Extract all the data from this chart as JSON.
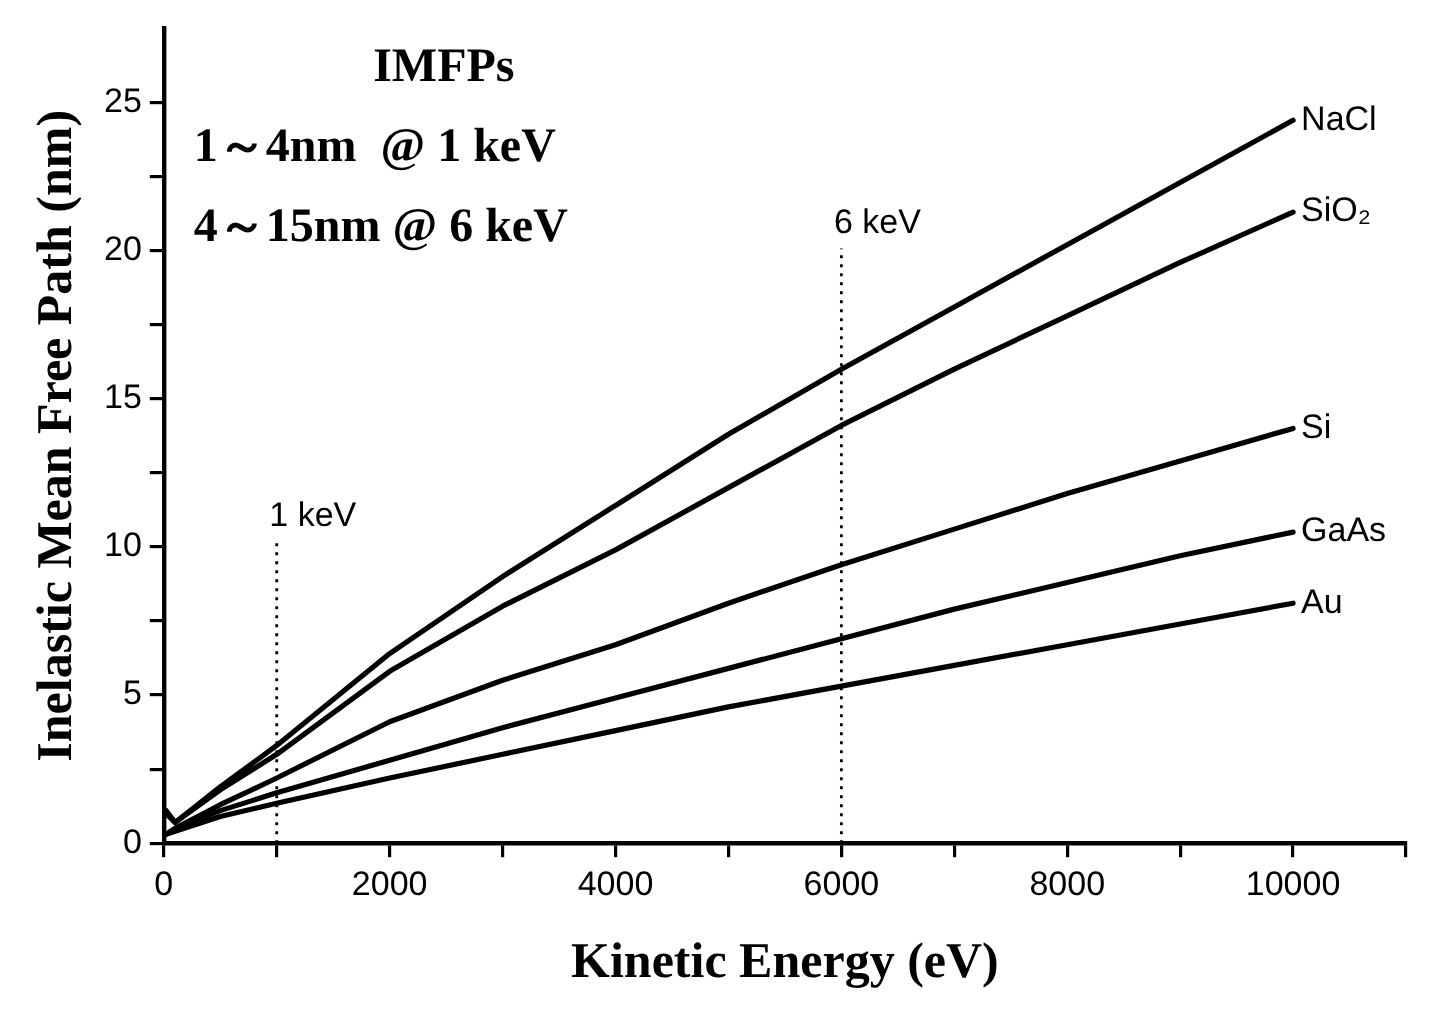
{
  "chart_data": {
    "type": "line",
    "xlabel": "Kinetic Energy (eV)",
    "ylabel": "Inelastic Mean Free Path (nm)",
    "annotations": [
      "IMFPs",
      "1～4nm  @ 1 keV",
      "4～15nm @ 6 keV"
    ],
    "x": [
      20,
      100,
      500,
      1000,
      2000,
      3000,
      4000,
      5000,
      6000,
      7000,
      8000,
      9000,
      10000
    ],
    "series": [
      {
        "name": "NaCl",
        "color": "#000000",
        "values": [
          1.1,
          0.7,
          1.9,
          3.3,
          6.4,
          9.0,
          11.4,
          13.8,
          16.0,
          18.1,
          20.2,
          22.3,
          24.4
        ]
      },
      {
        "name": "SiO₂",
        "color": "#000000",
        "values": [
          1.0,
          0.7,
          1.8,
          3.0,
          5.8,
          8.0,
          9.9,
          12.0,
          14.1,
          16.0,
          17.8,
          19.6,
          21.3
        ]
      },
      {
        "name": "Si",
        "color": "#000000",
        "values": [
          0.3,
          0.5,
          1.3,
          2.2,
          4.1,
          5.5,
          6.7,
          8.1,
          9.4,
          10.6,
          11.8,
          12.9,
          14.0
        ]
      },
      {
        "name": "GaAs",
        "color": "#000000",
        "values": [
          0.3,
          0.5,
          1.1,
          1.7,
          2.8,
          3.9,
          4.9,
          5.9,
          6.9,
          7.9,
          8.8,
          9.7,
          10.5
        ]
      },
      {
        "name": "Au",
        "color": "#000000",
        "values": [
          0.3,
          0.4,
          0.9,
          1.35,
          2.2,
          3.0,
          3.8,
          4.6,
          5.3,
          6.0,
          6.7,
          7.4,
          8.1
        ]
      }
    ],
    "xlim": [
      0,
      11000
    ],
    "xticks": [
      0,
      {
        "value": 1000,
        "label": null
      },
      2000,
      {
        "value": 3000,
        "label": null
      },
      4000,
      {
        "value": 5000,
        "label": null
      },
      6000,
      {
        "value": 7000,
        "label": null
      },
      8000,
      {
        "value": 9000,
        "label": null
      },
      10000,
      {
        "value": 11000,
        "label": null
      }
    ],
    "ylim": [
      0,
      27.5
    ],
    "yticks": [
      0,
      {
        "value": 2.5,
        "label": null
      },
      5,
      {
        "value": 7.5,
        "label": null
      },
      10,
      {
        "value": 12.5,
        "label": null
      },
      15,
      {
        "value": 17.5,
        "label": null
      },
      20,
      {
        "value": 22.5,
        "label": null
      },
      25
    ],
    "ref_lines": [
      {
        "axis": "x",
        "value": 1000,
        "label": "1 keV",
        "line_style": "dotted"
      },
      {
        "axis": "x",
        "value": 6000,
        "label": "6 keV",
        "line_style": "dotted"
      }
    ],
    "grid": false,
    "legend": false,
    "marker": "none",
    "line_style": "solid"
  }
}
